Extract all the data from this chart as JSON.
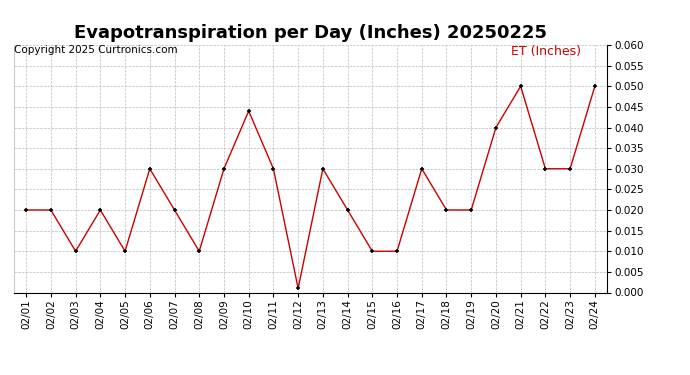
{
  "title": "Evapotranspiration per Day (Inches) 20250225",
  "copyright": "Copyright 2025 Curtronics.com",
  "legend_label": "ET (Inches)",
  "x_labels": [
    "02/01",
    "02/02",
    "02/03",
    "02/04",
    "02/05",
    "02/06",
    "02/07",
    "02/08",
    "02/09",
    "02/10",
    "02/11",
    "02/12",
    "02/13",
    "02/14",
    "02/15",
    "02/16",
    "02/17",
    "02/18",
    "02/19",
    "02/20",
    "02/21",
    "02/22",
    "02/23",
    "02/24"
  ],
  "y_values": [
    0.02,
    0.02,
    0.01,
    0.02,
    0.01,
    0.03,
    0.02,
    0.01,
    0.03,
    0.044,
    0.03,
    0.001,
    0.03,
    0.02,
    0.01,
    0.01,
    0.03,
    0.02,
    0.02,
    0.04,
    0.05,
    0.03,
    0.03,
    0.05
  ],
  "line_color": "#cc0000",
  "marker_color": "#000000",
  "ylim": [
    0.0,
    0.06
  ],
  "yticks": [
    0.0,
    0.005,
    0.01,
    0.015,
    0.02,
    0.025,
    0.03,
    0.035,
    0.04,
    0.045,
    0.05,
    0.055,
    0.06
  ],
  "bg_color": "#ffffff",
  "grid_color": "#bbbbbb",
  "title_fontsize": 13,
  "tick_fontsize": 7.5,
  "copyright_fontsize": 7.5,
  "legend_fontsize": 9
}
